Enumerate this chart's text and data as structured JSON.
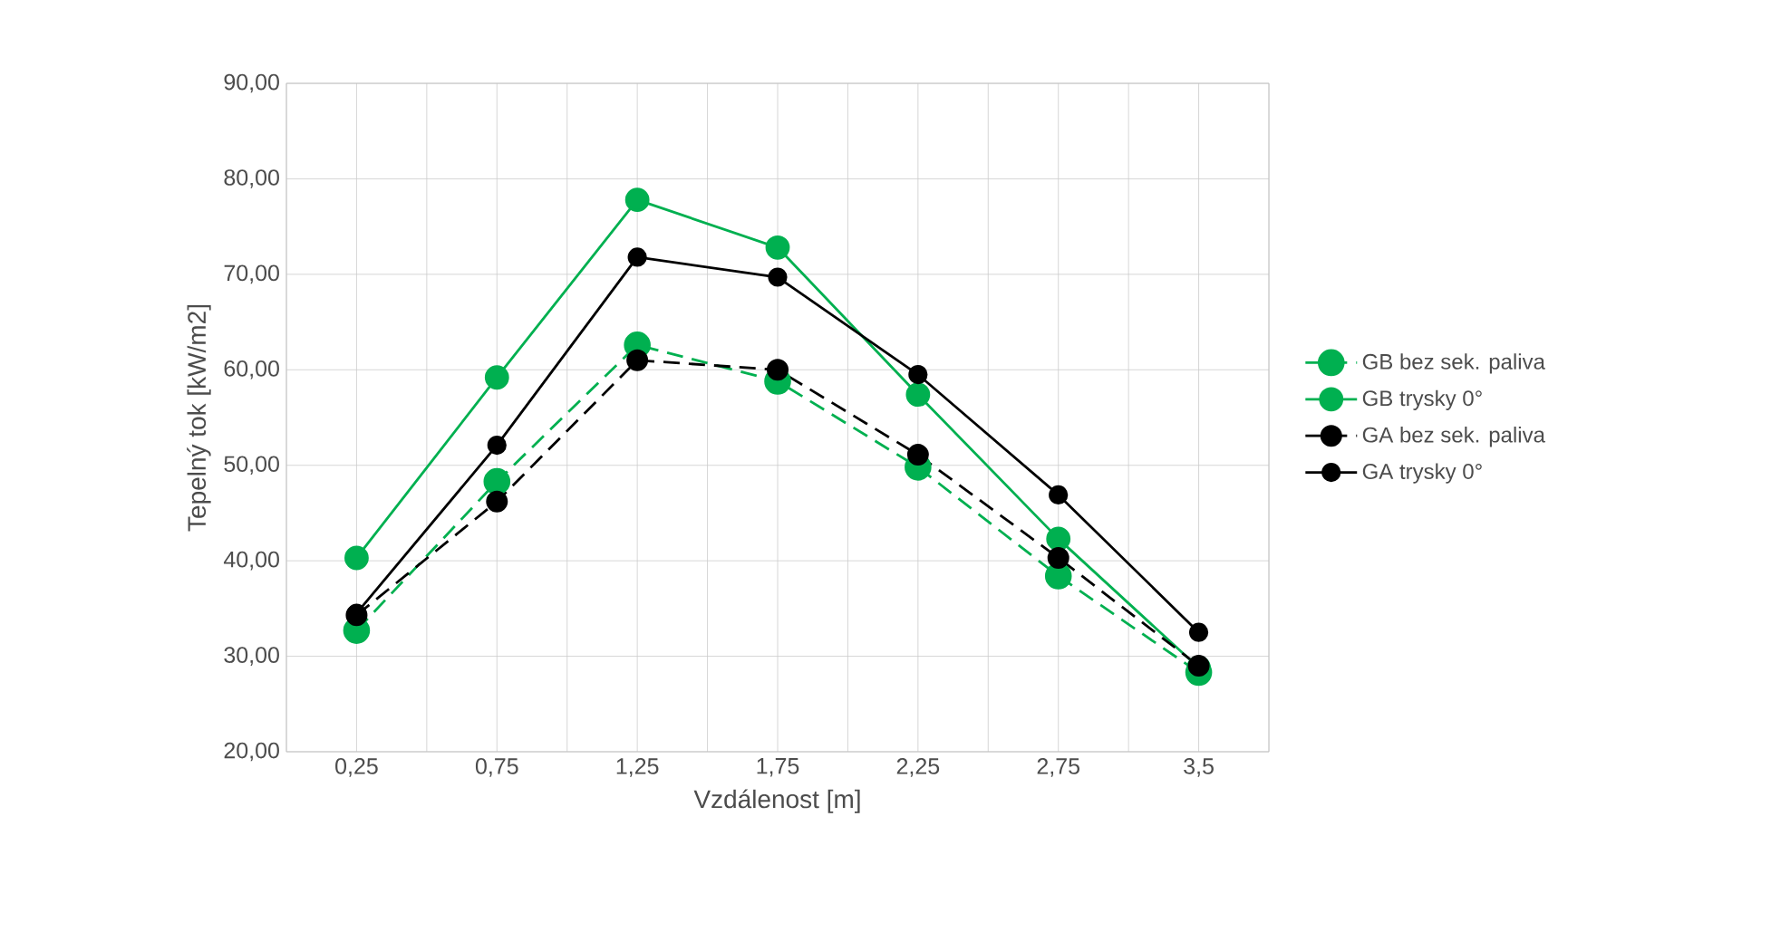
{
  "chart_data": {
    "type": "line",
    "xlabel": "Vzdálenost [m]",
    "ylabel": "Tepelný tok [kW/m2]",
    "categories": [
      "0,25",
      "0,75",
      "1,25",
      "1,75",
      "2,25",
      "2,75",
      "3,5"
    ],
    "series": [
      {
        "name": "GB bez sek. paliva",
        "color": "#00b050",
        "line_style": "dashed",
        "values": [
          32.7,
          48.3,
          62.6,
          58.8,
          49.8,
          38.4,
          28.3
        ]
      },
      {
        "name": "GB trysky 0°",
        "color": "#00b050",
        "line_style": "solid",
        "values": [
          40.3,
          59.2,
          77.8,
          72.8,
          57.4,
          42.3,
          28.8
        ]
      },
      {
        "name": "GA bez sek. paliva",
        "color": "#000000",
        "line_style": "dashed",
        "values": [
          34.3,
          46.2,
          61.0,
          60.0,
          51.1,
          40.3,
          29.0
        ]
      },
      {
        "name": "GA trysky 0°",
        "color": "#000000",
        "line_style": "solid",
        "values": [
          34.5,
          52.1,
          71.8,
          69.7,
          59.5,
          46.9,
          32.5
        ]
      }
    ],
    "ylim": [
      20,
      90
    ],
    "yticks": [
      {
        "value": 20,
        "label": "20,00"
      },
      {
        "value": 30,
        "label": "30,00"
      },
      {
        "value": 40,
        "label": "40,00"
      },
      {
        "value": 50,
        "label": "50,00"
      },
      {
        "value": 60,
        "label": "60,00"
      },
      {
        "value": 70,
        "label": "70,00"
      },
      {
        "value": 80,
        "label": "80,00"
      },
      {
        "value": 90,
        "label": "90,00"
      }
    ],
    "grid": true,
    "legend": "right",
    "marker": "circle"
  }
}
